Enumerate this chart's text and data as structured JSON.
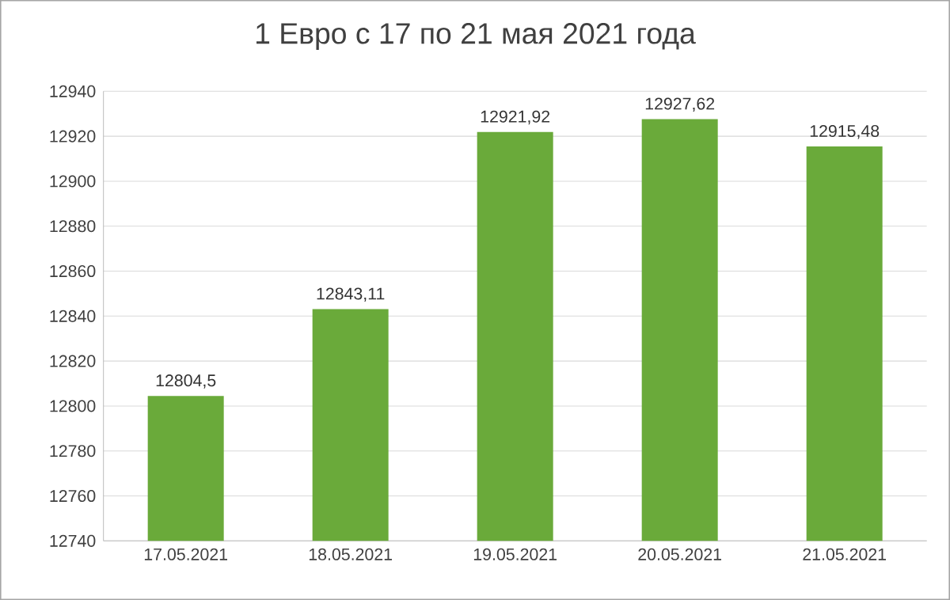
{
  "chart_data": {
    "type": "bar",
    "title": "1 Евро с 17 по 21 мая 2021 года",
    "categories": [
      "17.05.2021",
      "18.05.2021",
      "19.05.2021",
      "20.05.2021",
      "21.05.2021"
    ],
    "values": [
      12804.5,
      12843.11,
      12921.92,
      12927.62,
      12915.48
    ],
    "value_labels": [
      "12804,5",
      "12843,11",
      "12921,92",
      "12927,62",
      "12915,48"
    ],
    "color": "#6aaa3a",
    "ylim": [
      12740,
      12940
    ],
    "yticks": [
      12740,
      12760,
      12780,
      12800,
      12820,
      12840,
      12860,
      12880,
      12900,
      12920,
      12940
    ],
    "grid": "y"
  }
}
